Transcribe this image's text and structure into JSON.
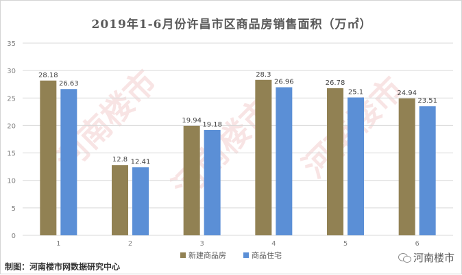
{
  "title": "2019年1-6月份许昌市区商品房销售面积（万㎡）",
  "footer": {
    "credit": "制图：河南楼市网数据研究中心",
    "brand": "河南楼市"
  },
  "watermark": {
    "text": "河南楼市"
  },
  "colors": {
    "series1": "#918153",
    "series2": "#5b8fd6",
    "grid": "#d9d9d9",
    "text": "#595959"
  },
  "chart_data": {
    "type": "bar",
    "title": "2019年1-6月份许昌市区商品房销售面积（万㎡）",
    "categories": [
      "1",
      "2",
      "3",
      "4",
      "5",
      "6"
    ],
    "series": [
      {
        "name": "新建商品房",
        "values": [
          28.18,
          12.8,
          19.94,
          28.3,
          26.78,
          24.94
        ]
      },
      {
        "name": "商品住宅",
        "values": [
          26.63,
          12.41,
          19.18,
          26.96,
          25.1,
          23.51
        ]
      }
    ],
    "value_labels": [
      [
        "28.18",
        "12.8",
        "19.94",
        "28.3",
        "26.78",
        "24.94"
      ],
      [
        "26.63",
        "12.41",
        "19.18",
        "26.96",
        "25.1",
        "23.51"
      ]
    ],
    "ylim": [
      0,
      35
    ],
    "yticks": [
      0,
      5,
      10,
      15,
      20,
      25,
      30,
      35
    ],
    "grid": true,
    "legend": "bottom"
  }
}
